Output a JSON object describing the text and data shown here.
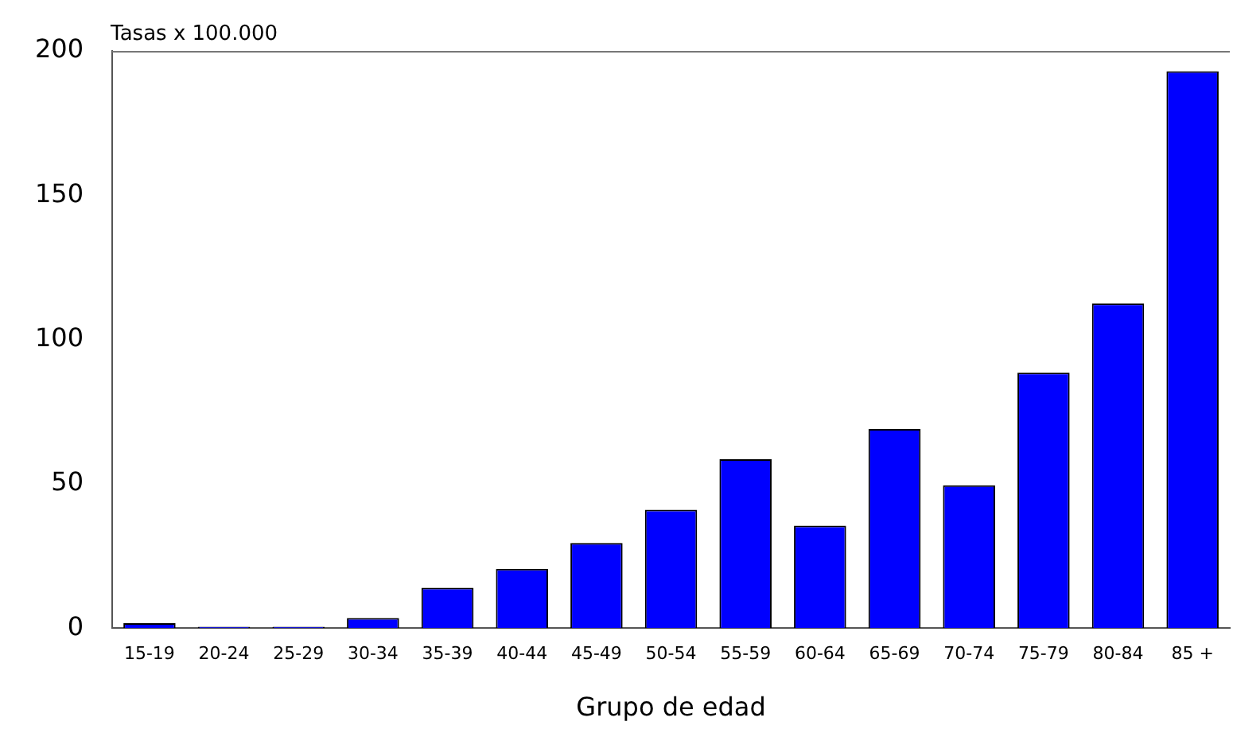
{
  "chart_data": {
    "type": "bar",
    "ylabel": "Tasas x 100.000",
    "xlabel": "Grupo de edad",
    "categories": [
      "15-19",
      "20-24",
      "25-29",
      "30-34",
      "35-39",
      "40-44",
      "45-49",
      "50-54",
      "55-59",
      "60-64",
      "65-69",
      "70-74",
      "75-79",
      "80-84",
      "85 +"
    ],
    "values": [
      1.7,
      0.5,
      0.5,
      3.5,
      14,
      20.5,
      29.5,
      41,
      58.5,
      35.5,
      69,
      49.5,
      88.5,
      112.5,
      193
    ],
    "color": "#0000ff",
    "ylim": [
      0,
      200
    ],
    "yticks": [
      0,
      50,
      100,
      150,
      200
    ],
    "grid": false,
    "legend": false
  }
}
